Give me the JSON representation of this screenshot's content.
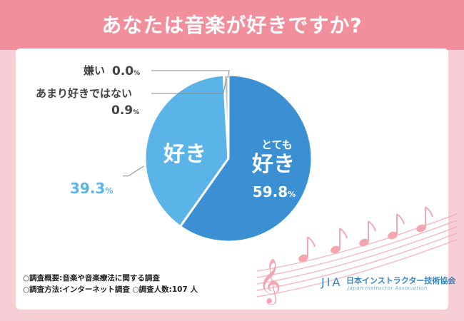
{
  "title": "あなたは音楽が好きですか?",
  "chart_data": {
    "type": "pie",
    "categories": [
      "とても好き",
      "好き",
      "あまり好きではない",
      "嫌い"
    ],
    "values": [
      59.8,
      39.3,
      0.9,
      0.0
    ],
    "colors": [
      "#3b8fd3",
      "#5bb4e8",
      "#b8c3cc",
      "#9aa4ad"
    ],
    "labels": {
      "very_like": {
        "line1": "とても",
        "line2": "好き",
        "pct": "59.8",
        "unit": "%"
      },
      "like": {
        "name": "好き",
        "pct": "39.3",
        "unit": "%"
      },
      "not_much": {
        "name": "あまり好きではない",
        "pct": "0.9",
        "unit": "%"
      },
      "dislike": {
        "name": "嫌い",
        "pct": "0.0",
        "unit": "%"
      }
    }
  },
  "footnotes": {
    "line1": "○調査概要:音楽や音楽療法に関する調査",
    "line2": "○調査方法:インターネット調査 ○調査人数:107 人"
  },
  "logo": {
    "mark": "JIA",
    "name_jp": "日本インストラクター技術協会",
    "name_en": "Japan Instructor Association"
  },
  "colors": {
    "header": "#f28f9d",
    "background": "#f6cfd6",
    "blue_dark": "#3b8fd3",
    "blue_light": "#5bb4e8",
    "music_pink": "#f3a6b2"
  }
}
